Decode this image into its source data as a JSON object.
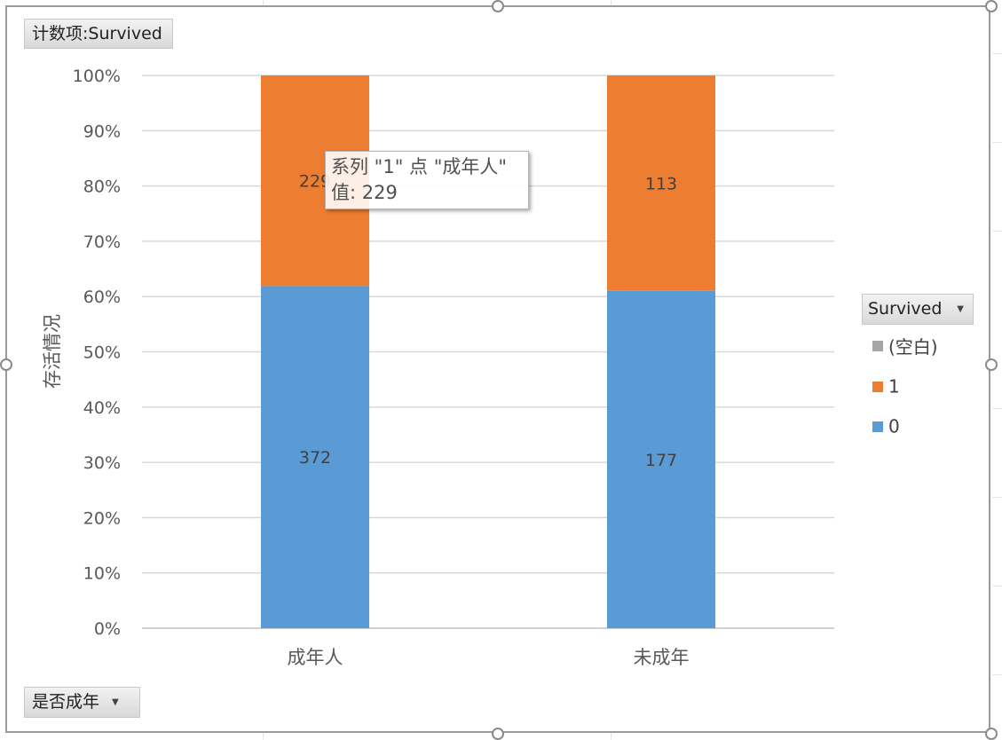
{
  "field_buttons": {
    "value_field": "计数项:Survived",
    "axis_field": "是否成年"
  },
  "legend": {
    "title": "Survived"
  },
  "tooltip": {
    "line1": "系列 \"1\" 点 \"成年人\"",
    "line2": "值: 229"
  },
  "chart_data": {
    "type": "bar",
    "stacked": "percent",
    "categories": [
      "成年人",
      "未成年"
    ],
    "series": [
      {
        "name": "0",
        "values": [
          372,
          177
        ],
        "color": "#5b9bd5",
        "label_color": "#404040"
      },
      {
        "name": "1",
        "values": [
          229,
          113
        ],
        "color": "#ed7d31",
        "label_color": "#404040"
      },
      {
        "name": "(空白)",
        "values": [
          0,
          0
        ],
        "color": "#a5a5a5",
        "label_color": "#404040"
      }
    ],
    "legend_order": [
      "(空白)",
      "1",
      "0"
    ],
    "title": "",
    "xlabel": "",
    "ylabel": "存活情况",
    "ylim": [
      0,
      100
    ],
    "yticks": [
      "0%",
      "10%",
      "20%",
      "30%",
      "40%",
      "50%",
      "60%",
      "70%",
      "80%",
      "90%",
      "100%"
    ],
    "grid": true,
    "legend_position": "right",
    "data_labels": true
  }
}
